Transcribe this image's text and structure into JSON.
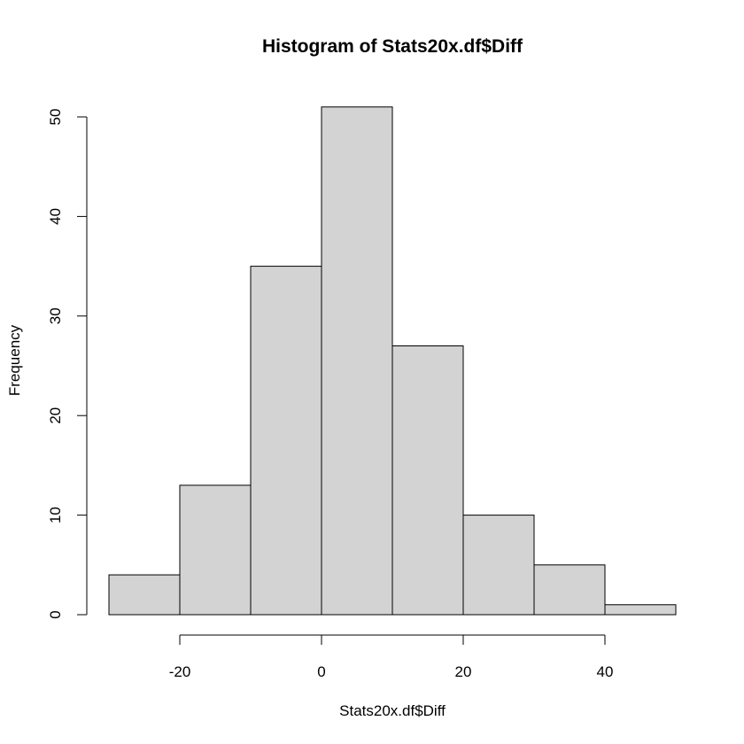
{
  "chart_data": {
    "type": "bar",
    "title": "Histogram of Stats20x.df$Diff",
    "xlabel": "Stats20x.df$Diff",
    "ylabel": "Frequency",
    "bins": [
      {
        "from": -30,
        "to": -20,
        "count": 4
      },
      {
        "from": -20,
        "to": -10,
        "count": 13
      },
      {
        "from": -10,
        "to": 0,
        "count": 35
      },
      {
        "from": 0,
        "to": 10,
        "count": 51
      },
      {
        "from": 10,
        "to": 20,
        "count": 27
      },
      {
        "from": 20,
        "to": 30,
        "count": 10
      },
      {
        "from": 30,
        "to": 40,
        "count": 5
      },
      {
        "from": 40,
        "to": 50,
        "count": 1
      }
    ],
    "xlim": [
      -30,
      50
    ],
    "ylim": [
      0,
      51
    ],
    "x_ticks": [
      -20,
      0,
      20,
      40
    ],
    "x_tick_labels": [
      "-20",
      "0",
      "20",
      "40"
    ],
    "y_ticks": [
      0,
      10,
      20,
      30,
      40,
      50
    ],
    "y_tick_labels": [
      "0",
      "10",
      "20",
      "30",
      "40",
      "50"
    ],
    "grid": false,
    "legend": "none",
    "bar_fill": "#d3d3d3",
    "bar_stroke": "#000000"
  }
}
